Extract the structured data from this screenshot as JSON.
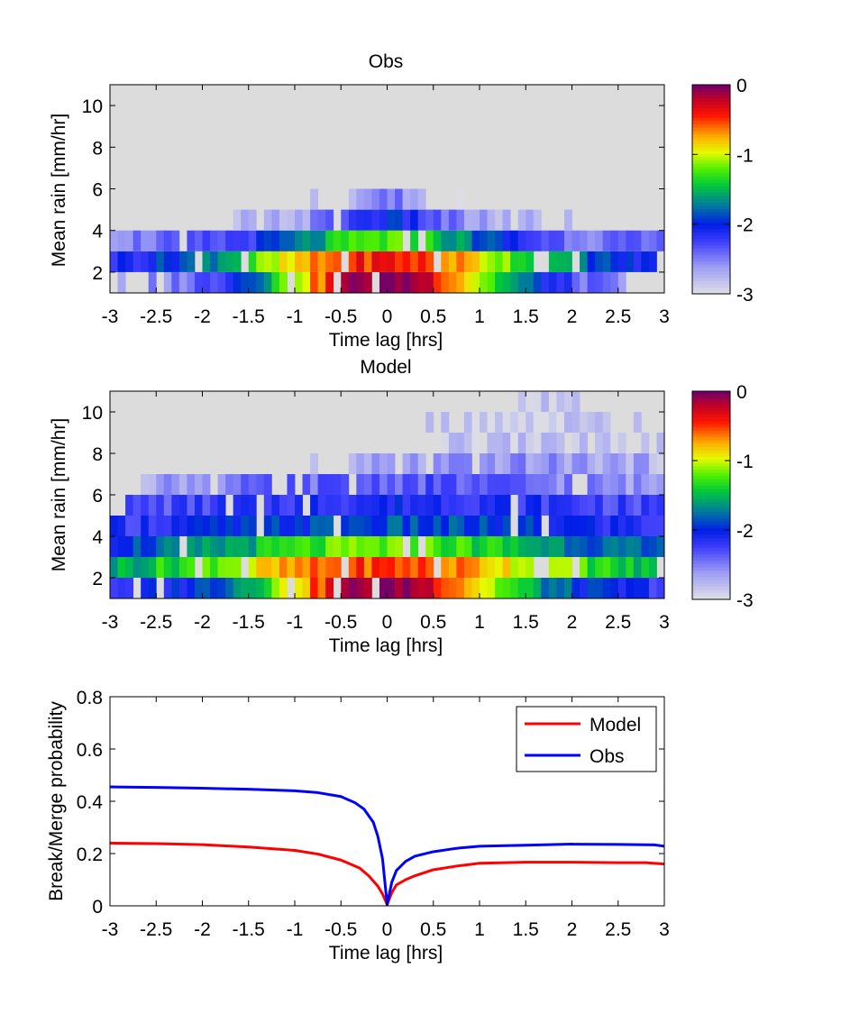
{
  "chart_data": [
    {
      "type": "heatmap",
      "title": "Obs",
      "xlabel": "Time lag [hrs]",
      "ylabel": "Mean rain [mm/hr]",
      "xlim": [
        -3,
        3
      ],
      "ylim": [
        1,
        11
      ],
      "xticks": [
        "-3",
        "-2.5",
        "-2",
        "-1.5",
        "-1",
        "-0.5",
        "0",
        "0.5",
        "1",
        "1.5",
        "2",
        "2.5",
        "3"
      ],
      "yticks": [
        "2",
        "4",
        "6",
        "8",
        "10"
      ],
      "colorbar": {
        "min": -3,
        "max": 0,
        "ticks": [
          "0",
          "-1",
          "-2",
          "-3"
        ]
      },
      "background_color": "#dcdcdc",
      "rows": [
        {
          "y0": 1,
          "y1": 2,
          "center": 0,
          "peak": 0.05,
          "width": 1.0,
          "floor": -2.7,
          "extent": 2.6
        },
        {
          "y0": 2,
          "y1": 3,
          "center": 0,
          "peak": -0.4,
          "width": 1.3,
          "floor": -2.3,
          "extent": 3.0
        },
        {
          "y0": 3,
          "y1": 4,
          "center": 0,
          "peak": -1.25,
          "width": 0.9,
          "floor": -2.5,
          "extent": 3.0
        },
        {
          "y0": 4,
          "y1": 5,
          "center": 0,
          "peak": -2.05,
          "width": 0.5,
          "floor": -2.8,
          "extent": 1.7
        },
        {
          "y0": 5,
          "y1": 6,
          "center": 0,
          "peak": -2.5,
          "width": 0.3,
          "floor": -2.9,
          "extent": 0.45
        }
      ]
    },
    {
      "type": "heatmap",
      "title": "Model",
      "xlabel": "Time lag [hrs]",
      "ylabel": "Mean rain [mm/hr]",
      "xlim": [
        -3,
        3
      ],
      "ylim": [
        1,
        11
      ],
      "xticks": [
        "-3",
        "-2.5",
        "-2",
        "-1.5",
        "-1",
        "-0.5",
        "0",
        "0.5",
        "1",
        "1.5",
        "2",
        "2.5",
        "3"
      ],
      "yticks": [
        "2",
        "4",
        "6",
        "8",
        "10"
      ],
      "colorbar": {
        "min": -3,
        "max": 0,
        "ticks": [
          "0",
          "-1",
          "-2",
          "-3"
        ]
      },
      "background_color": "#dcdcdc",
      "rows": [
        {
          "y0": 1,
          "y1": 2,
          "center": 0,
          "peak": 0.0,
          "width": 1.0,
          "floor": -2.2,
          "extent": 3.0
        },
        {
          "y0": 2,
          "y1": 3,
          "center": 0,
          "peak": -0.5,
          "width": 1.6,
          "floor": -1.8,
          "extent": 3.0
        },
        {
          "y0": 3,
          "y1": 4,
          "center": 0,
          "peak": -1.2,
          "width": 1.6,
          "floor": -2.1,
          "extent": 3.0
        },
        {
          "y0": 4,
          "y1": 5,
          "center": 0,
          "peak": -1.9,
          "width": 2.5,
          "floor": -2.5,
          "extent": 3.0
        },
        {
          "y0": 5,
          "y1": 6,
          "center": 0.2,
          "peak": -2.1,
          "width": 2.5,
          "floor": -2.6,
          "extent": 3.0
        },
        {
          "y0": 6,
          "y1": 7,
          "center": 0.2,
          "peak": -2.35,
          "width": 2.0,
          "floor": -2.85,
          "extent": 2.9
        },
        {
          "y0": 7,
          "y1": 8,
          "center": 1.3,
          "peak": -2.6,
          "width": 1.4,
          "floor": -2.9,
          "extent": 1.7
        },
        {
          "y0": 8,
          "y1": 9,
          "center": 1.6,
          "peak": -2.85,
          "width": 1.0,
          "floor": -2.95,
          "extent": 1.0
        },
        {
          "y0": 9,
          "y1": 10,
          "center": 1.6,
          "peak": -2.9,
          "width": 0.8,
          "floor": -2.95,
          "extent": 0.8
        },
        {
          "y0": 10,
          "y1": 11,
          "center": 1.8,
          "peak": -2.9,
          "width": 0.5,
          "floor": -2.95,
          "extent": 0.4
        }
      ]
    },
    {
      "type": "line",
      "title": "",
      "xlabel": "Time lag [hrs]",
      "ylabel": "Break/Merge probability",
      "xlim": [
        -3,
        3
      ],
      "ylim": [
        0,
        0.8
      ],
      "xticks": [
        "-3",
        "-2.5",
        "-2",
        "-1.5",
        "-1",
        "-0.5",
        "0",
        "0.5",
        "1",
        "1.5",
        "2",
        "2.5",
        "3"
      ],
      "yticks": [
        "0",
        "0.2",
        "0.4",
        "0.6",
        "0.8"
      ],
      "legend": "top-right",
      "series": [
        {
          "name": "Model",
          "color": "#ff0000",
          "points": [
            [
              -3,
              0.24
            ],
            [
              -2.5,
              0.238
            ],
            [
              -2,
              0.234
            ],
            [
              -1.5,
              0.225
            ],
            [
              -1,
              0.212
            ],
            [
              -0.75,
              0.198
            ],
            [
              -0.5,
              0.175
            ],
            [
              -0.3,
              0.145
            ],
            [
              -0.2,
              0.115
            ],
            [
              -0.1,
              0.075
            ],
            [
              -0.05,
              0.045
            ],
            [
              0,
              0.005
            ],
            [
              0.05,
              0.05
            ],
            [
              0.1,
              0.08
            ],
            [
              0.2,
              0.1
            ],
            [
              0.3,
              0.115
            ],
            [
              0.5,
              0.138
            ],
            [
              0.75,
              0.152
            ],
            [
              1,
              0.163
            ],
            [
              1.5,
              0.167
            ],
            [
              2,
              0.167
            ],
            [
              2.5,
              0.165
            ],
            [
              2.8,
              0.165
            ],
            [
              3,
              0.16
            ]
          ]
        },
        {
          "name": "Obs",
          "color": "#0000ff",
          "points": [
            [
              -3,
              0.455
            ],
            [
              -2.5,
              0.453
            ],
            [
              -2,
              0.45
            ],
            [
              -1.5,
              0.446
            ],
            [
              -1,
              0.44
            ],
            [
              -0.75,
              0.433
            ],
            [
              -0.5,
              0.418
            ],
            [
              -0.35,
              0.395
            ],
            [
              -0.25,
              0.37
            ],
            [
              -0.15,
              0.32
            ],
            [
              -0.1,
              0.265
            ],
            [
              -0.05,
              0.18
            ],
            [
              0,
              0.005
            ],
            [
              0.05,
              0.09
            ],
            [
              0.1,
              0.135
            ],
            [
              0.2,
              0.17
            ],
            [
              0.3,
              0.19
            ],
            [
              0.5,
              0.207
            ],
            [
              0.75,
              0.22
            ],
            [
              1,
              0.228
            ],
            [
              1.5,
              0.232
            ],
            [
              2,
              0.236
            ],
            [
              2.5,
              0.235
            ],
            [
              2.9,
              0.233
            ],
            [
              3,
              0.228
            ]
          ]
        }
      ]
    }
  ]
}
